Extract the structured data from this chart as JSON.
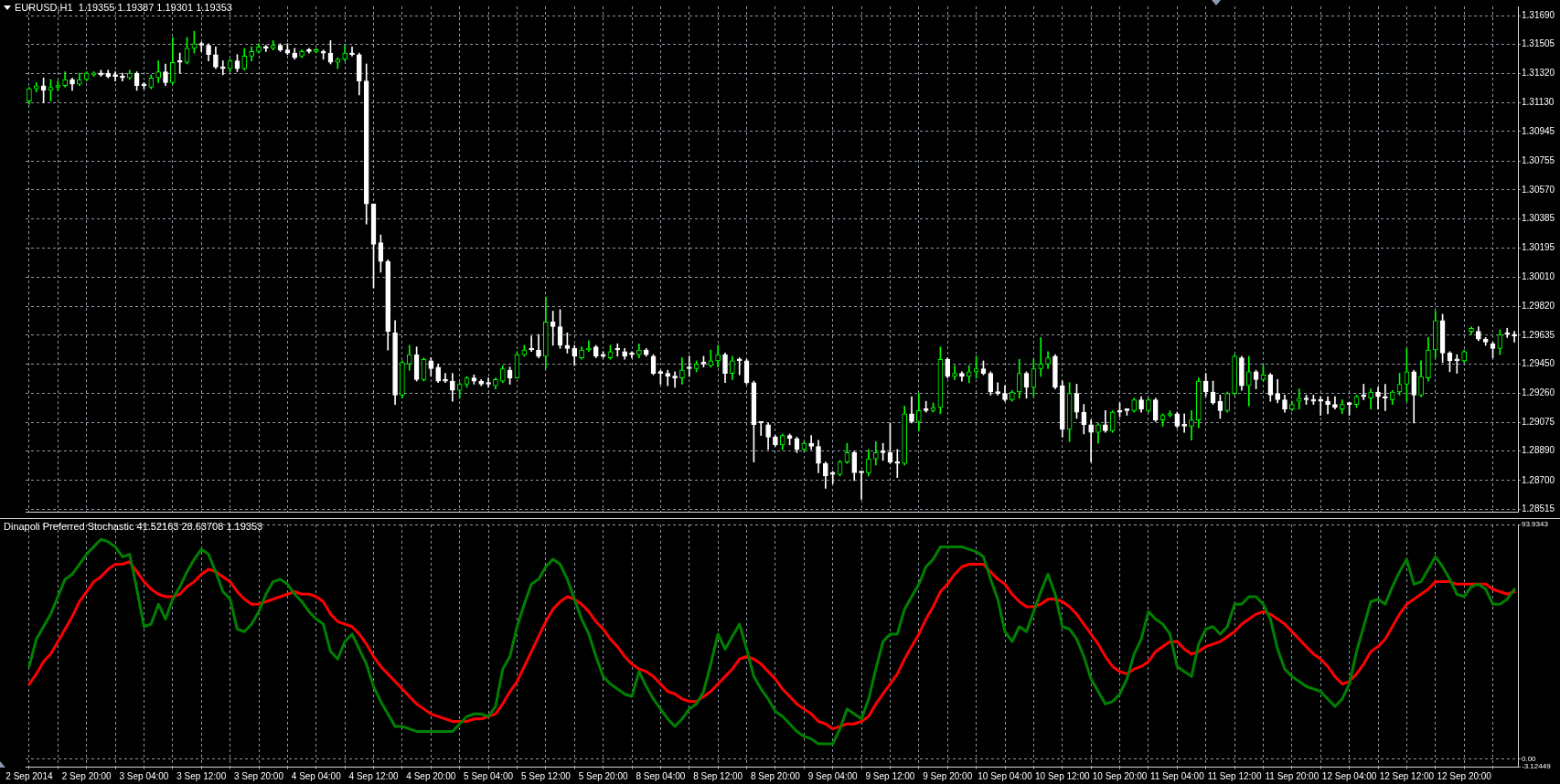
{
  "chart_data": [
    {
      "type": "candlestick",
      "title": "EURUSD,H1  1.19355 1.19387 1.19301 1.19353",
      "categories": [
        null,
        null,
        null,
        null,
        null,
        null,
        null,
        null,
        null,
        null,
        null,
        null,
        null,
        null,
        null,
        null,
        null,
        null,
        null,
        null,
        null,
        null,
        null,
        null,
        null,
        null,
        null,
        null,
        null,
        null,
        null,
        null,
        null,
        null,
        null,
        null,
        null,
        null,
        null,
        null,
        null,
        null,
        null,
        null,
        null,
        null,
        null,
        null,
        null,
        null,
        null,
        null,
        null,
        null,
        null,
        null,
        null,
        null,
        null,
        null,
        null,
        null,
        null,
        null,
        null,
        null,
        null,
        null,
        null,
        null,
        null,
        null,
        null,
        null,
        null,
        null,
        null,
        null,
        null,
        null,
        null,
        null,
        null,
        null,
        null,
        null,
        null,
        null,
        null,
        null,
        null,
        null,
        null,
        null,
        null,
        null,
        null,
        null,
        null,
        null,
        null,
        null,
        null,
        null,
        null,
        null,
        null,
        null,
        null,
        null,
        null,
        null,
        null,
        null,
        null,
        null,
        null,
        null,
        null,
        null,
        null,
        null,
        null,
        null,
        null,
        null,
        null,
        null,
        null,
        null,
        null,
        null,
        null,
        null,
        null,
        null,
        null,
        null,
        null,
        null,
        null,
        null,
        null,
        null,
        null,
        null,
        null,
        null,
        null,
        null,
        null,
        null,
        null,
        null,
        null,
        null,
        null,
        null,
        null,
        null,
        null,
        null,
        null,
        null,
        null,
        null,
        null,
        null,
        null,
        null,
        null,
        null,
        null,
        null,
        null,
        null,
        null,
        null,
        null,
        null,
        null,
        null,
        null,
        null,
        null,
        null,
        null,
        null,
        null,
        null,
        null,
        null,
        null,
        null,
        null,
        null,
        null,
        null,
        null,
        null,
        null,
        null,
        null,
        null,
        null,
        null,
        null,
        null
      ],
      "ohlc": [
        [
          1.3114,
          1.3123,
          1.3112,
          1.3122
        ],
        [
          1.3122,
          1.3126,
          1.312,
          1.3124
        ],
        [
          1.3124,
          1.3129,
          1.3113,
          1.3121
        ],
        [
          1.3121,
          1.3128,
          1.3114,
          1.3123
        ],
        [
          1.3123,
          1.3127,
          1.3121,
          1.3124
        ],
        [
          1.3124,
          1.3133,
          1.3123,
          1.3128
        ],
        [
          1.3128,
          1.3129,
          1.3121,
          1.3125
        ],
        [
          1.3125,
          1.3132,
          1.3124,
          1.3128
        ],
        [
          1.3128,
          1.3133,
          1.3127,
          1.3132
        ],
        [
          1.3131,
          1.3133,
          1.313,
          1.3132
        ],
        [
          1.3132,
          1.3134,
          1.313,
          1.3131
        ],
        [
          1.3132,
          1.3134,
          1.3129,
          1.313
        ],
        [
          1.313,
          1.3133,
          1.3127,
          1.313
        ],
        [
          1.313,
          1.3132,
          1.3127,
          1.3129
        ],
        [
          1.3129,
          1.3134,
          1.3128,
          1.3132
        ],
        [
          1.3132,
          1.3133,
          1.3121,
          1.3124
        ],
        [
          1.3124,
          1.3126,
          1.3122,
          1.3124
        ],
        [
          1.3123,
          1.3131,
          1.3122,
          1.3129
        ],
        [
          1.3129,
          1.314,
          1.3126,
          1.3133
        ],
        [
          1.3133,
          1.3138,
          1.3124,
          1.3126
        ],
        [
          1.3126,
          1.3155,
          1.3125,
          1.3139
        ],
        [
          1.3139,
          1.3145,
          1.3132,
          1.3139
        ],
        [
          1.3139,
          1.3155,
          1.3138,
          1.3148
        ],
        [
          1.3148,
          1.3159,
          1.3145,
          1.3151
        ],
        [
          1.3151,
          1.3152,
          1.3146,
          1.315
        ],
        [
          1.315,
          1.3151,
          1.314,
          1.3144
        ],
        [
          1.3144,
          1.3149,
          1.3135,
          1.3136
        ],
        [
          1.3136,
          1.314,
          1.3131,
          1.3135
        ],
        [
          1.3135,
          1.3141,
          1.3133,
          1.314
        ],
        [
          1.314,
          1.3144,
          1.3133,
          1.3135
        ],
        [
          1.3135,
          1.3148,
          1.3134,
          1.3143
        ],
        [
          1.3143,
          1.3149,
          1.314,
          1.3146
        ],
        [
          1.3146,
          1.3151,
          1.3145,
          1.3149
        ],
        [
          1.3149,
          1.315,
          1.3146,
          1.3148
        ],
        [
          1.3148,
          1.3153,
          1.3147,
          1.315
        ],
        [
          1.315,
          1.3151,
          1.3146,
          1.3147
        ],
        [
          1.3147,
          1.3151,
          1.3144,
          1.3145
        ],
        [
          1.3145,
          1.3148,
          1.3141,
          1.3142
        ],
        [
          1.3143,
          1.3147,
          1.3142,
          1.3146
        ],
        [
          1.3147,
          1.3148,
          1.3145,
          1.3146
        ],
        [
          1.3146,
          1.3148,
          1.3145,
          1.3147
        ],
        [
          1.3146,
          1.3147,
          1.3141,
          1.3145
        ],
        [
          1.3145,
          1.3153,
          1.3138,
          1.3139
        ],
        [
          1.3139,
          1.3142,
          1.3135,
          1.3141
        ],
        [
          1.3141,
          1.315,
          1.314,
          1.3145
        ],
        [
          1.3145,
          1.3149,
          1.3143,
          1.3144
        ],
        [
          1.3144,
          1.3145,
          1.3118,
          1.3127
        ],
        [
          1.3127,
          1.3138,
          1.3035,
          1.3048
        ],
        [
          1.3048,
          1.3048,
          1.2994,
          1.3022
        ],
        [
          1.3023,
          1.3028,
          1.3004,
          1.3011
        ],
        [
          1.3011,
          1.3012,
          1.2954,
          1.2966
        ],
        [
          1.2965,
          1.2973,
          1.2919,
          1.2925
        ],
        [
          1.2925,
          1.2947,
          1.2923,
          1.2946
        ],
        [
          1.2945,
          1.2957,
          1.2941,
          1.2951
        ],
        [
          1.2951,
          1.2956,
          1.2934,
          1.2935
        ],
        [
          1.2935,
          1.2949,
          1.2934,
          1.2948
        ],
        [
          1.2947,
          1.2949,
          1.2937,
          1.2942
        ],
        [
          1.2943,
          1.2945,
          1.2933,
          1.2934
        ],
        [
          1.2934,
          1.2939,
          1.2933,
          1.2934
        ],
        [
          1.2934,
          1.2939,
          1.2921,
          1.2928
        ],
        [
          1.2928,
          1.2933,
          1.2923,
          1.2932
        ],
        [
          1.2932,
          1.2937,
          1.293,
          1.2936
        ],
        [
          1.2936,
          1.2938,
          1.2932,
          1.2934
        ],
        [
          1.2934,
          1.2935,
          1.2931,
          1.2932
        ],
        [
          1.2932,
          1.2936,
          1.293,
          1.2932
        ],
        [
          1.2931,
          1.2936,
          1.2929,
          1.2935
        ],
        [
          1.2934,
          1.2944,
          1.2933,
          1.2942
        ],
        [
          1.2941,
          1.2943,
          1.2932,
          1.2936
        ],
        [
          1.2936,
          1.2953,
          1.2936,
          1.2951
        ],
        [
          1.2951,
          1.2957,
          1.295,
          1.2954
        ],
        [
          1.2954,
          1.2963,
          1.2953,
          1.2954
        ],
        [
          1.2954,
          1.2964,
          1.2949,
          1.295
        ],
        [
          1.295,
          1.2988,
          1.2942,
          1.2972
        ],
        [
          1.2972,
          1.2979,
          1.2957,
          1.2969
        ],
        [
          1.2969,
          1.298,
          1.2955,
          1.2957
        ],
        [
          1.2957,
          1.2965,
          1.2952,
          1.2955
        ],
        [
          1.2955,
          1.2957,
          1.2944,
          1.295
        ],
        [
          1.2949,
          1.2956,
          1.2948,
          1.2954
        ],
        [
          1.2954,
          1.296,
          1.2953,
          1.2955
        ],
        [
          1.2956,
          1.2957,
          1.2949,
          1.295
        ],
        [
          1.295,
          1.2953,
          1.2949,
          1.295
        ],
        [
          1.2949,
          1.2957,
          1.2948,
          1.2953
        ],
        [
          1.2954,
          1.2958,
          1.295,
          1.2954
        ],
        [
          1.2953,
          1.2955,
          1.2948,
          1.295
        ],
        [
          1.2951,
          1.2953,
          1.2949,
          1.2951
        ],
        [
          1.2951,
          1.2958,
          1.2949,
          1.2954
        ],
        [
          1.2954,
          1.2955,
          1.295,
          1.2951
        ],
        [
          1.295,
          1.2951,
          1.2938,
          1.2939
        ],
        [
          1.2939,
          1.2941,
          1.2932,
          1.2939
        ],
        [
          1.2939,
          1.2941,
          1.2931,
          1.2937
        ],
        [
          1.2936,
          1.294,
          1.293,
          1.2936
        ],
        [
          1.2936,
          1.2949,
          1.2932,
          1.2941
        ],
        [
          1.2942,
          1.295,
          1.2937,
          1.2942
        ],
        [
          1.2942,
          1.2947,
          1.294,
          1.2945
        ],
        [
          1.2945,
          1.295,
          1.2943,
          1.2945
        ],
        [
          1.2944,
          1.2954,
          1.2943,
          1.2947
        ],
        [
          1.2947,
          1.2957,
          1.2943,
          1.2951
        ],
        [
          1.2951,
          1.2952,
          1.2933,
          1.2939
        ],
        [
          1.2939,
          1.295,
          1.2935,
          1.2947
        ],
        [
          1.2947,
          1.2949,
          1.2938,
          1.2947
        ],
        [
          1.2947,
          1.2948,
          1.2932,
          1.2933
        ],
        [
          1.2933,
          1.2934,
          1.2882,
          1.2906
        ],
        [
          1.2907,
          1.2908,
          1.2899,
          1.2907
        ],
        [
          1.2906,
          1.2907,
          1.289,
          1.2898
        ],
        [
          1.2898,
          1.2899,
          1.2892,
          1.2893
        ],
        [
          1.2893,
          1.29,
          1.289,
          1.2899
        ],
        [
          1.2899,
          1.29,
          1.2893,
          1.2897
        ],
        [
          1.2897,
          1.2898,
          1.2888,
          1.289
        ],
        [
          1.289,
          1.2895,
          1.2889,
          1.2894
        ],
        [
          1.2894,
          1.2899,
          1.289,
          1.2892
        ],
        [
          1.2892,
          1.2896,
          1.2875,
          1.2881
        ],
        [
          1.2881,
          1.2882,
          1.2865,
          1.2873
        ],
        [
          1.2874,
          1.2876,
          1.2868,
          1.2874
        ],
        [
          1.2874,
          1.2883,
          1.2873,
          1.2882
        ],
        [
          1.2882,
          1.2894,
          1.2881,
          1.2888
        ],
        [
          1.2888,
          1.2889,
          1.287,
          1.2875
        ],
        [
          1.2875,
          1.2876,
          1.2858,
          1.2875
        ],
        [
          1.2875,
          1.289,
          1.2873,
          1.2884
        ],
        [
          1.2884,
          1.2895,
          1.288,
          1.2888
        ],
        [
          1.2888,
          1.2894,
          1.2883,
          1.2888
        ],
        [
          1.2888,
          1.2907,
          1.2881,
          1.2882
        ],
        [
          1.2882,
          1.289,
          1.2872,
          1.2881
        ],
        [
          1.2881,
          1.2918,
          1.288,
          1.2913
        ],
        [
          1.2913,
          1.2924,
          1.2907,
          1.2908
        ],
        [
          1.2908,
          1.2926,
          1.2902,
          1.2915
        ],
        [
          1.2915,
          1.2921,
          1.2914,
          1.2915
        ],
        [
          1.2915,
          1.292,
          1.2914,
          1.2917
        ],
        [
          1.2917,
          1.2956,
          1.2913,
          1.2948
        ],
        [
          1.2948,
          1.2949,
          1.2936,
          1.2937
        ],
        [
          1.2937,
          1.2944,
          1.2935,
          1.2939
        ],
        [
          1.2939,
          1.294,
          1.2934,
          1.2937
        ],
        [
          1.2937,
          1.2944,
          1.2933,
          1.294
        ],
        [
          1.294,
          1.295,
          1.2936,
          1.2942
        ],
        [
          1.2942,
          1.2947,
          1.2938,
          1.2939
        ],
        [
          1.2939,
          1.294,
          1.2925,
          1.2927
        ],
        [
          1.2927,
          1.2933,
          1.2925,
          1.2926
        ],
        [
          1.2926,
          1.2931,
          1.2921,
          1.2922
        ],
        [
          1.2922,
          1.2928,
          1.2921,
          1.2927
        ],
        [
          1.2927,
          1.2948,
          1.2923,
          1.2939
        ],
        [
          1.2939,
          1.294,
          1.2923,
          1.293
        ],
        [
          1.293,
          1.2948,
          1.2924,
          1.2942
        ],
        [
          1.2942,
          1.2962,
          1.2937,
          1.2945
        ],
        [
          1.2945,
          1.2953,
          1.2942,
          1.2949
        ],
        [
          1.295,
          1.2951,
          1.2929,
          1.293
        ],
        [
          1.2931,
          1.2934,
          1.2898,
          1.2903
        ],
        [
          1.2903,
          1.2933,
          1.2895,
          1.2926
        ],
        [
          1.2926,
          1.2932,
          1.291,
          1.2914
        ],
        [
          1.2914,
          1.2919,
          1.29,
          1.2906
        ],
        [
          1.2906,
          1.2909,
          1.2882,
          1.2901
        ],
        [
          1.2901,
          1.2907,
          1.2894,
          1.2906
        ],
        [
          1.2906,
          1.2915,
          1.2901,
          1.2902
        ],
        [
          1.2902,
          1.2915,
          1.2901,
          1.2914
        ],
        [
          1.2914,
          1.292,
          1.2911,
          1.2914
        ],
        [
          1.2915,
          1.2916,
          1.2912,
          1.2915
        ],
        [
          1.2915,
          1.2923,
          1.2914,
          1.2922
        ],
        [
          1.2922,
          1.2924,
          1.2914,
          1.2916
        ],
        [
          1.2915,
          1.2923,
          1.2914,
          1.2922
        ],
        [
          1.2922,
          1.2923,
          1.2908,
          1.2909
        ],
        [
          1.2909,
          1.2913,
          1.2905,
          1.2912
        ],
        [
          1.2912,
          1.2915,
          1.2911,
          1.2913
        ],
        [
          1.2913,
          1.2914,
          1.2904,
          1.2905
        ],
        [
          1.2905,
          1.2913,
          1.2901,
          1.2905
        ],
        [
          1.2905,
          1.2915,
          1.2896,
          1.2909
        ],
        [
          1.2909,
          1.2936,
          1.2904,
          1.2934
        ],
        [
          1.2934,
          1.2939,
          1.2924,
          1.2927
        ],
        [
          1.2927,
          1.2934,
          1.2919,
          1.292
        ],
        [
          1.2921,
          1.2925,
          1.291,
          1.2915
        ],
        [
          1.2915,
          1.2927,
          1.2914,
          1.2926
        ],
        [
          1.2926,
          1.2951,
          1.2925,
          1.295
        ],
        [
          1.2949,
          1.295,
          1.2928,
          1.2931
        ],
        [
          1.2931,
          1.295,
          1.2918,
          1.294
        ],
        [
          1.294,
          1.2941,
          1.2929,
          1.2935
        ],
        [
          1.2935,
          1.2944,
          1.2934,
          1.2938
        ],
        [
          1.2938,
          1.2939,
          1.2921,
          1.2925
        ],
        [
          1.2926,
          1.2935,
          1.292,
          1.2922
        ],
        [
          1.2922,
          1.2925,
          1.2914,
          1.2916
        ],
        [
          1.2916,
          1.2921,
          1.2915,
          1.2919
        ],
        [
          1.2921,
          1.2929,
          1.2916,
          1.2923
        ],
        [
          1.2922,
          1.2925,
          1.2919,
          1.2922
        ],
        [
          1.2922,
          1.2925,
          1.2919,
          1.2921
        ],
        [
          1.2921,
          1.2924,
          1.2912,
          1.2921
        ],
        [
          1.2921,
          1.2924,
          1.2913,
          1.2919
        ],
        [
          1.2919,
          1.2924,
          1.2916,
          1.2917
        ],
        [
          1.2916,
          1.2922,
          1.2913,
          1.2919
        ],
        [
          1.2919,
          1.292,
          1.2912,
          1.2919
        ],
        [
          1.2919,
          1.2925,
          1.2917,
          1.2924
        ],
        [
          1.2924,
          1.2932,
          1.2922,
          1.2924
        ],
        [
          1.2923,
          1.2929,
          1.2916,
          1.2927
        ],
        [
          1.2927,
          1.293,
          1.2916,
          1.2924
        ],
        [
          1.2923,
          1.2932,
          1.2915,
          1.2923
        ],
        [
          1.2922,
          1.2928,
          1.2919,
          1.2927
        ],
        [
          1.2927,
          1.2939,
          1.2925,
          1.2932
        ],
        [
          1.2932,
          1.2955,
          1.2921,
          1.294
        ],
        [
          1.294,
          1.2941,
          1.2907,
          1.2925
        ],
        [
          1.2925,
          1.2947,
          1.2924,
          1.2937
        ],
        [
          1.2936,
          1.2962,
          1.2934,
          1.2954
        ],
        [
          1.2954,
          1.2979,
          1.2949,
          1.2973
        ],
        [
          1.2973,
          1.2977,
          1.2946,
          1.2952
        ],
        [
          1.2952,
          1.2953,
          1.294,
          1.2947
        ],
        [
          1.2947,
          1.2951,
          1.2939,
          1.2947
        ],
        [
          1.2947,
          1.2954,
          1.2946,
          1.2953
        ],
        [
          1.2966,
          1.2969,
          1.2964,
          1.2968
        ],
        [
          1.2966,
          1.2969,
          1.296,
          1.2961
        ],
        [
          1.2961,
          1.2962,
          1.2957,
          1.2959
        ],
        [
          1.2958,
          1.2959,
          1.2949,
          1.2955
        ],
        [
          1.2955,
          1.2967,
          1.2951,
          1.2964
        ],
        [
          1.2964,
          1.2968,
          1.2962,
          1.2964
        ],
        [
          1.2964,
          1.2966,
          1.2959,
          1.2963
        ]
      ],
      "colors": [
        "#00ff00",
        "#00ff00",
        "#ffffff",
        "#00ff00",
        "#00ff00",
        "#00ff00",
        "#ffffff",
        "#00ff00",
        "#00ff00",
        "#00ff00",
        "#ffffff",
        "#ffffff",
        "#ffffff",
        "#ffffff",
        "#00ff00",
        "#ffffff",
        "#ffffff",
        "#00ff00",
        "#00ff00",
        "#ffffff",
        "#00ff00",
        "#ffffff",
        "#00ff00",
        "#00ff00",
        "#ffffff",
        "#ffffff",
        "#ffffff",
        "#ffffff",
        "#00ff00",
        "#ffffff",
        "#00ff00",
        "#00ff00",
        "#00ff00",
        "#ffffff",
        "#00ff00",
        "#ffffff",
        "#ffffff",
        "#ffffff",
        "#00ff00",
        "#ffffff",
        "#00ff00",
        "#ffffff",
        "#ffffff",
        "#00ff00",
        "#00ff00",
        "#ffffff",
        "#ffffff",
        "#ffffff",
        "#ffffff",
        "#ffffff",
        "#ffffff",
        "#ffffff",
        "#00ff00",
        "#00ff00",
        "#ffffff",
        "#00ff00",
        "#ffffff",
        "#ffffff",
        "#ffffff",
        "#ffffff",
        "#00ff00",
        "#00ff00",
        "#ffffff",
        "#ffffff",
        "#ffffff",
        "#00ff00",
        "#00ff00",
        "#ffffff",
        "#00ff00",
        "#00ff00",
        "#ffffff",
        "#ffffff",
        "#00ff00",
        "#ffffff",
        "#ffffff",
        "#ffffff",
        "#ffffff",
        "#00ff00",
        "#00ff00",
        "#ffffff",
        "#ffffff",
        "#00ff00",
        "#ffffff",
        "#ffffff",
        "#ffffff",
        "#00ff00",
        "#ffffff",
        "#ffffff",
        "#ffffff",
        "#ffffff",
        "#ffffff",
        "#00ff00",
        "#ffffff",
        "#00ff00",
        "#ffffff",
        "#00ff00",
        "#00ff00",
        "#ffffff",
        "#00ff00",
        "#ffffff",
        "#ffffff",
        "#ffffff",
        "#ffffff",
        "#ffffff",
        "#ffffff",
        "#00ff00",
        "#ffffff",
        "#ffffff",
        "#00ff00",
        "#ffffff",
        "#ffffff",
        "#ffffff",
        "#ffffff",
        "#00ff00",
        "#00ff00",
        "#ffffff",
        "#ffffff",
        "#00ff00",
        "#00ff00",
        "#ffffff",
        "#ffffff",
        "#ffffff",
        "#00ff00",
        "#ffffff",
        "#00ff00",
        "#ffffff",
        "#00ff00",
        "#00ff00",
        "#ffffff",
        "#00ff00",
        "#ffffff",
        "#00ff00",
        "#00ff00",
        "#ffffff",
        "#ffffff",
        "#ffffff",
        "#ffffff",
        "#00ff00",
        "#00ff00",
        "#ffffff",
        "#00ff00",
        "#00ff00",
        "#00ff00",
        "#ffffff",
        "#ffffff",
        "#00ff00",
        "#ffffff",
        "#ffffff",
        "#ffffff",
        "#00ff00",
        "#ffffff",
        "#00ff00",
        "#ffffff",
        "#ffffff",
        "#00ff00",
        "#ffffff",
        "#00ff00",
        "#ffffff",
        "#00ff00",
        "#00ff00",
        "#ffffff",
        "#ffffff",
        "#00ff00",
        "#00ff00",
        "#ffffff",
        "#ffffff",
        "#ffffff",
        "#00ff00",
        "#00ff00",
        "#ffffff",
        "#00ff00",
        "#ffffff",
        "#00ff00",
        "#ffffff",
        "#ffffff",
        "#ffffff",
        "#00ff00",
        "#00ff00",
        "#ffffff",
        "#ffffff",
        "#ffffff",
        "#ffffff",
        "#ffffff",
        "#00ff00",
        "#ffffff",
        "#00ff00",
        "#ffffff",
        "#00ff00",
        "#ffffff",
        "#ffffff",
        "#00ff00",
        "#00ff00",
        "#00ff00",
        "#ffffff",
        "#00ff00",
        "#00ff00",
        "#00ff00",
        "#ffffff",
        "#ffffff",
        "#ffffff",
        "#00ff00",
        "#00ff00",
        "#ffffff",
        "#ffffff",
        "#ffffff",
        "#00ff00",
        "#ffffff",
        "#ffffff"
      ],
      "ylim": [
        1.285,
        1.3175
      ],
      "yticks": [
        1.28515,
        {
          "value": 1.287,
          "label": "1.28700"
        },
        {
          "value": 1.2889,
          "label": "1.28890"
        },
        1.29075,
        {
          "value": 1.2926,
          "label": "1.29260"
        },
        {
          "value": 1.2945,
          "label": "1.29450"
        },
        1.29635,
        {
          "value": 1.2982,
          "label": "1.29820"
        },
        {
          "value": 1.3001,
          "label": "1.30010"
        },
        1.30195,
        1.30385,
        {
          "value": 1.3057,
          "label": "1.30570"
        },
        1.30755,
        1.30945,
        {
          "value": 1.3113,
          "label": "1.31130"
        },
        {
          "value": 1.3132,
          "label": "1.31320"
        },
        1.31505,
        {
          "value": 1.3169,
          "label": "1.31690"
        }
      ],
      "grid": true,
      "tick_labels": "y"
    },
    {
      "type": "line",
      "title": "Dinapoli Preferred Stochastic 41.52163 28.63708 1.19353",
      "categories": [
        "2 Sep 2014",
        null,
        null,
        null,
        null,
        null,
        null,
        null,
        "2 Sep 20:00",
        null,
        null,
        null,
        null,
        null,
        null,
        null,
        "3 Sep 04:00",
        null,
        null,
        null,
        null,
        null,
        null,
        null,
        "3 Sep 12:00",
        null,
        null,
        null,
        null,
        null,
        null,
        null,
        "3 Sep 20:00",
        null,
        null,
        null,
        null,
        null,
        null,
        null,
        "4 Sep 04:00",
        null,
        null,
        null,
        null,
        null,
        null,
        null,
        "4 Sep 12:00",
        null,
        null,
        null,
        null,
        null,
        null,
        null,
        "4 Sep 20:00",
        null,
        null,
        null,
        null,
        null,
        null,
        null,
        "5 Sep 04:00",
        null,
        null,
        null,
        null,
        null,
        null,
        null,
        "5 Sep 12:00",
        null,
        null,
        null,
        null,
        null,
        null,
        null,
        "5 Sep 20:00",
        null,
        null,
        null,
        null,
        null,
        null,
        null,
        "8 Sep 04:00",
        null,
        null,
        null,
        null,
        null,
        null,
        null,
        "8 Sep 12:00",
        null,
        null,
        null,
        null,
        null,
        null,
        null,
        "8 Sep 20:00",
        null,
        null,
        null,
        null,
        null,
        null,
        null,
        "9 Sep 04:00",
        null,
        null,
        null,
        null,
        null,
        null,
        null,
        "9 Sep 12:00",
        null,
        null,
        null,
        null,
        null,
        null,
        null,
        "9 Sep 20:00",
        null,
        null,
        null,
        null,
        null,
        null,
        null,
        "10 Sep 04:00",
        null,
        null,
        null,
        null,
        null,
        null,
        null,
        "10 Sep 12:00",
        null,
        null,
        null,
        null,
        null,
        null,
        null,
        "10 Sep 20:00",
        null,
        null,
        null,
        null,
        null,
        null,
        null,
        "11 Sep 04:00",
        null,
        null,
        null,
        null,
        null,
        null,
        null,
        "11 Sep 12:00",
        null,
        null,
        null,
        null,
        null,
        null,
        null,
        "11 Sep 20:00",
        null,
        null,
        null,
        null,
        null,
        null,
        null,
        "12 Sep 04:00",
        null,
        null,
        null,
        null,
        null,
        null,
        null,
        "12 Sep 12:00",
        null,
        null,
        null,
        null,
        null,
        null,
        null,
        "12 Sep 20:00",
        null,
        null,
        null,
        null,
        null,
        null,
        null
      ],
      "series": [
        {
          "color": "#008000",
          "values": [
            37,
            48,
            53,
            58,
            65,
            72,
            74,
            78,
            82,
            85,
            88,
            87,
            85,
            81,
            82,
            68,
            53,
            54,
            62,
            56,
            64,
            69,
            75,
            80,
            84,
            82,
            75,
            67,
            64,
            52,
            51,
            54,
            59,
            66,
            71,
            72,
            70,
            66,
            63,
            59,
            56,
            54,
            43,
            40,
            47,
            50,
            44,
            38,
            29,
            23,
            18,
            13,
            13,
            12,
            11,
            11,
            11,
            11,
            11,
            11,
            14,
            17,
            18,
            18,
            17,
            21,
            36,
            41,
            53,
            62,
            70,
            72,
            77,
            80,
            78,
            72,
            64,
            56,
            50,
            41,
            33,
            30,
            28,
            26,
            25,
            35,
            29,
            24,
            20,
            16,
            13,
            16,
            20,
            22,
            27,
            38,
            50,
            44,
            49,
            54,
            44,
            33,
            28,
            24,
            19,
            17,
            14,
            11,
            9,
            8,
            6,
            6,
            6,
            12,
            20,
            18,
            16,
            24,
            36,
            47,
            50,
            50,
            60,
            65,
            70,
            77,
            80,
            85,
            85,
            85,
            85,
            84,
            83,
            81,
            72,
            64,
            51,
            47,
            53,
            51,
            59,
            67,
            74,
            66,
            53,
            52,
            48,
            41,
            32,
            27,
            22,
            23,
            26,
            32,
            42,
            48,
            59,
            56,
            54,
            50,
            37,
            35,
            33,
            46,
            52,
            53,
            50,
            53,
            62,
            62,
            65,
            65,
            62,
            56,
            44,
            36,
            33,
            31,
            29,
            28,
            27,
            24,
            21,
            24,
            30,
            43,
            53,
            63,
            64,
            62,
            69,
            75,
            80,
            70,
            71,
            76,
            81,
            77,
            72,
            66,
            65,
            69,
            70,
            68,
            62,
            62,
            64,
            68
          ]
        },
        {
          "color": "#ff0000",
          "values": [
            30,
            34,
            39,
            42,
            47,
            52,
            57,
            63,
            67,
            71,
            73,
            76,
            78,
            78,
            79,
            75,
            71,
            68,
            66,
            65,
            65,
            66,
            69,
            71,
            74,
            76,
            75,
            73,
            71,
            67,
            64,
            62,
            62,
            63,
            64,
            65,
            66,
            67,
            66,
            66,
            65,
            63,
            58,
            55,
            54,
            53,
            50,
            46,
            41,
            37,
            34,
            31,
            28,
            25,
            22,
            20,
            18,
            17,
            16,
            15,
            15,
            15,
            16,
            16,
            17,
            18,
            22,
            27,
            31,
            37,
            43,
            49,
            55,
            60,
            63,
            65,
            64,
            62,
            59,
            55,
            52,
            48,
            45,
            41,
            38,
            36,
            35,
            33,
            30,
            27,
            26,
            24,
            23,
            23,
            25,
            27,
            30,
            33,
            36,
            40,
            41,
            40,
            38,
            35,
            32,
            28,
            25,
            22,
            20,
            18,
            15,
            14,
            12,
            13,
            14,
            14,
            15,
            17,
            22,
            26,
            30,
            34,
            40,
            45,
            50,
            56,
            61,
            67,
            70,
            74,
            77,
            78,
            78,
            78,
            75,
            72,
            70,
            66,
            63,
            61,
            61,
            62,
            64,
            64,
            63,
            61,
            58,
            54,
            50,
            46,
            41,
            37,
            35,
            34,
            36,
            37,
            39,
            43,
            45,
            47,
            47,
            44,
            42,
            43,
            45,
            46,
            47,
            49,
            51,
            54,
            56,
            58,
            59,
            58,
            56,
            54,
            51,
            48,
            45,
            42,
            40,
            37,
            33,
            30,
            31,
            34,
            38,
            43,
            45,
            48,
            53,
            58,
            62,
            64,
            66,
            68,
            71,
            71,
            71,
            70,
            70,
            70,
            70,
            70,
            68,
            67,
            66,
            67
          ]
        }
      ],
      "ylim": [
        -3.12449,
        93.9343
      ],
      "yticks": [
        -3.12449,
        {
          "value": 0,
          "label": "0.00"
        },
        93.9343
      ],
      "grid": true
    }
  ]
}
